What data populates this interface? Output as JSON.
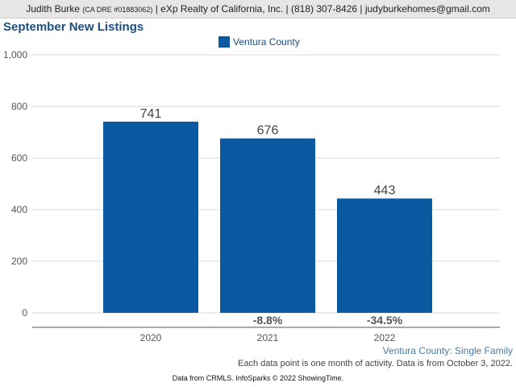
{
  "header": {
    "name": "Judith Burke",
    "license": "(CA DRE #01883062)",
    "rest": "| eXp Realty of California, Inc. | (818) 307-8426 | judyburkehomes@gmail.com"
  },
  "chart_data": {
    "type": "bar",
    "title": "September New Listings",
    "categories": [
      "2020",
      "2021",
      "2022"
    ],
    "series": [
      {
        "name": "Ventura County",
        "values": [
          741,
          676,
          443
        ],
        "color": "#0b5aa1"
      }
    ],
    "pct_change_labels": [
      "",
      "-8.8%",
      "-34.5%"
    ],
    "ylim": [
      0,
      1000
    ],
    "yticks": [
      0,
      200,
      400,
      600,
      800,
      1000
    ],
    "ytick_labels": [
      "0",
      "200",
      "400",
      "600",
      "800",
      "1,000"
    ],
    "legend_position": "top-center",
    "grid": true
  },
  "subtitle": "Ventura County: Single Family",
  "note": "Each data point is one month of activity. Data is from October 3, 2022.",
  "footer": "Data from CRMLS. InfoSparks © 2022 ShowingTime."
}
